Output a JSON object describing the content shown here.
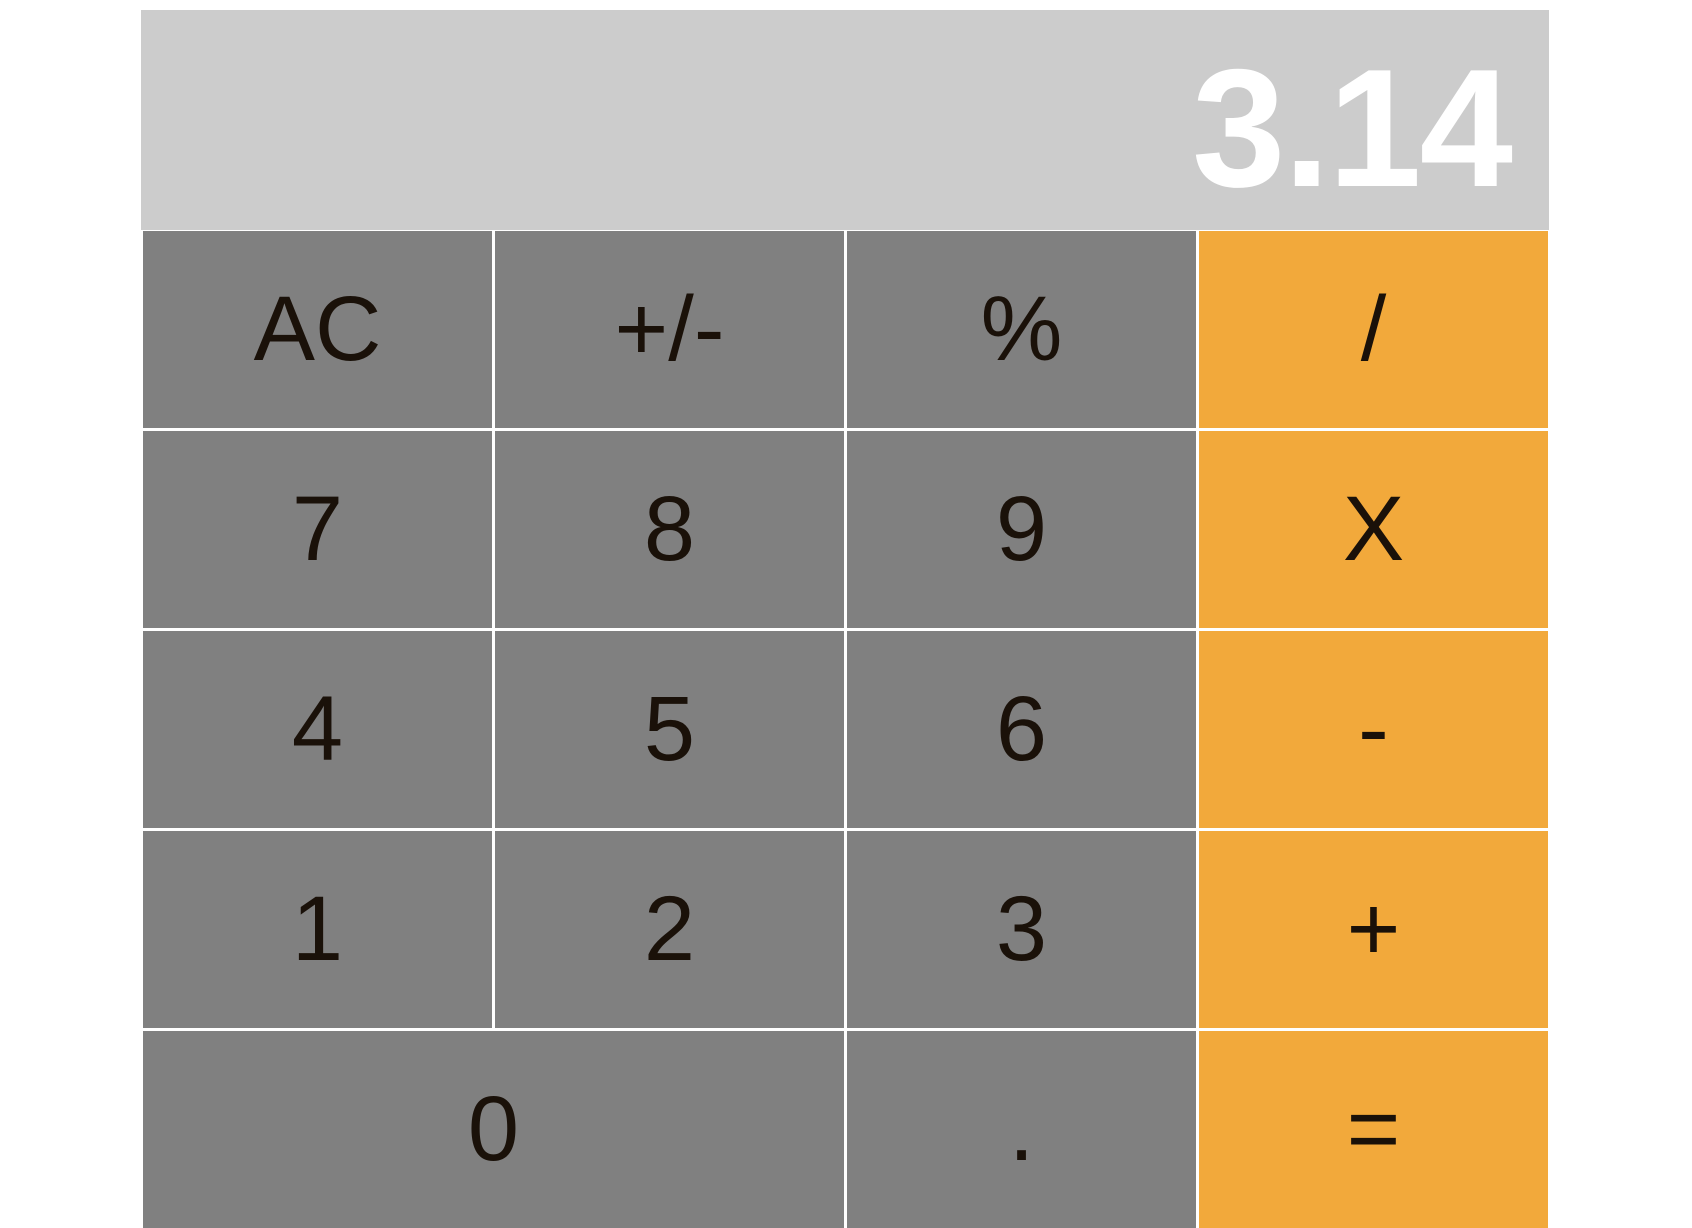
{
  "display": {
    "value": "3.14"
  },
  "colors": {
    "display_bg": "#cccccc",
    "display_text": "#ffffff",
    "key_gray": "#808080",
    "key_orange": "#f2a93b",
    "key_text": "#1a1109"
  },
  "keys": {
    "ac": "AC",
    "sign": "+/-",
    "percent": "%",
    "divide": "/",
    "seven": "7",
    "eight": "8",
    "nine": "9",
    "multiply": "X",
    "four": "4",
    "five": "5",
    "six": "6",
    "minus": "-",
    "one": "1",
    "two": "2",
    "three": "3",
    "plus": "+",
    "zero": "0",
    "decimal": ".",
    "equals": "="
  }
}
